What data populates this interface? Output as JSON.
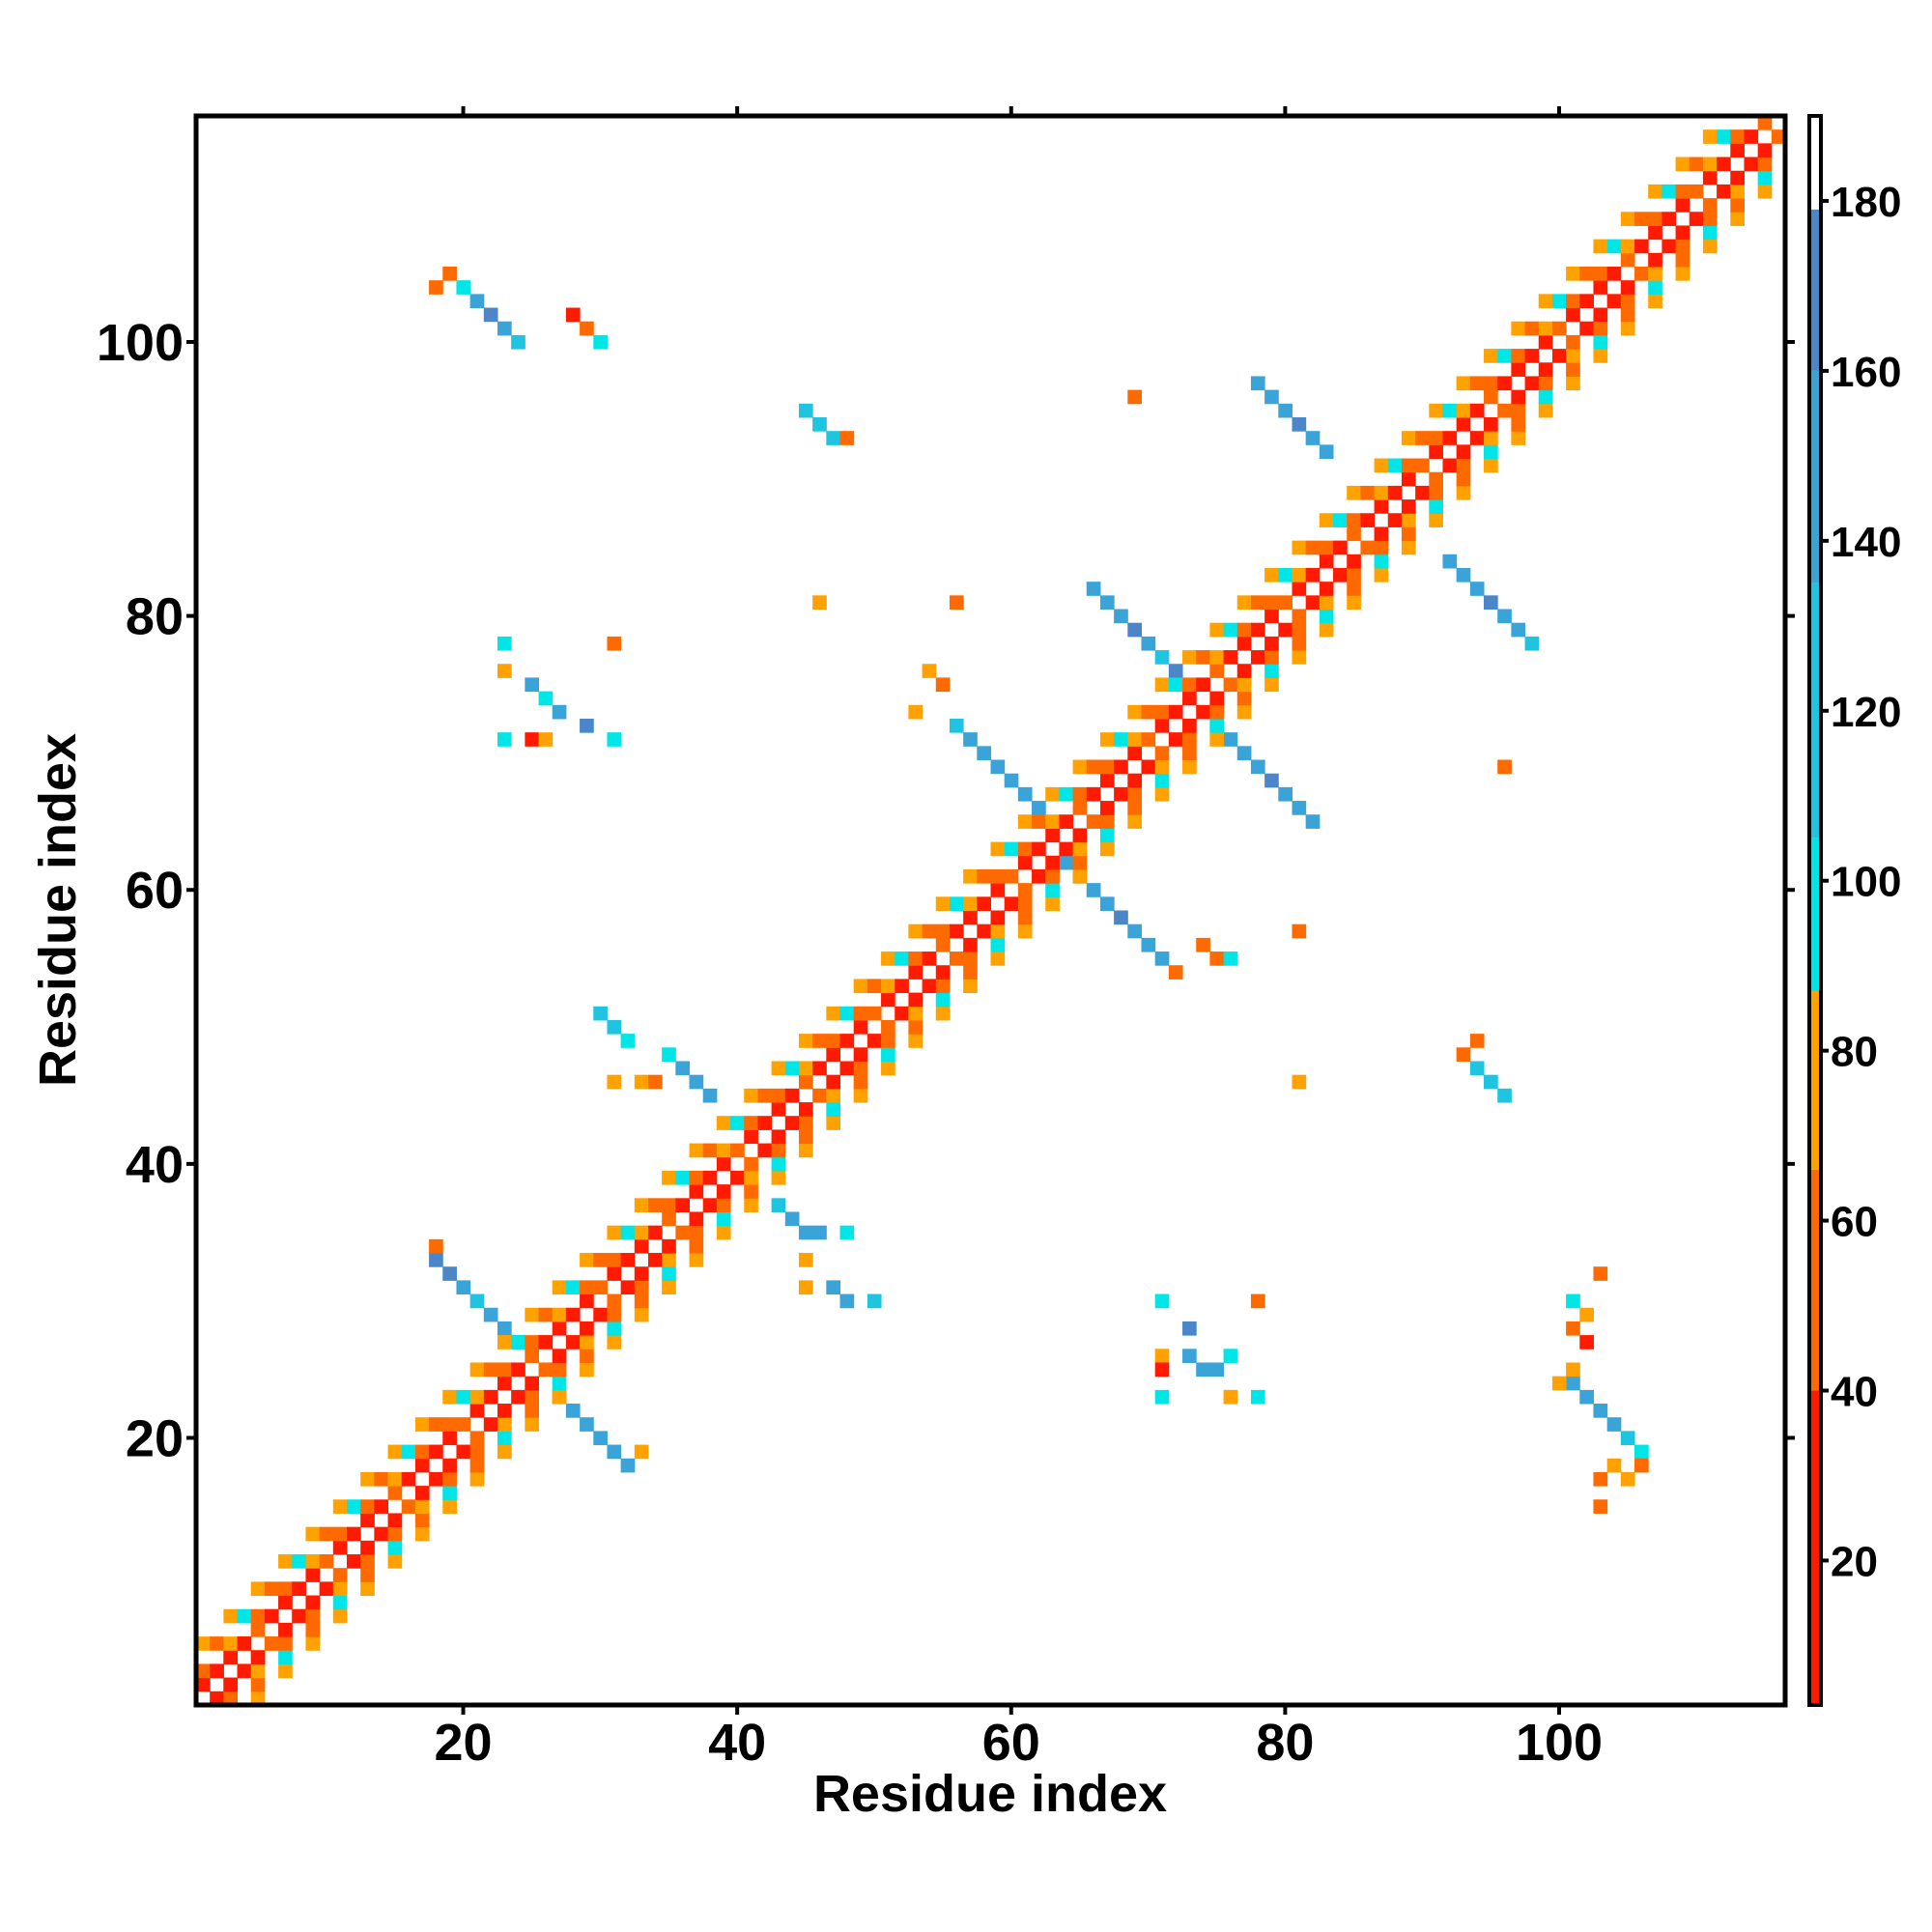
{
  "chart_data": {
    "type": "heatmap",
    "title": "",
    "xlabel": "Residue index",
    "ylabel": "Residue index",
    "xlim": [
      0.5,
      116.5
    ],
    "ylim": [
      0.5,
      116.5
    ],
    "xticks": [
      20,
      40,
      60,
      80,
      100
    ],
    "yticks": [
      20,
      40,
      60,
      80,
      100
    ],
    "grid": false,
    "colorbar": {
      "ticks": [
        20,
        40,
        60,
        80,
        100,
        120,
        140,
        160,
        180
      ],
      "range": [
        3,
        190
      ],
      "bands": [
        {
          "from": 3,
          "to": 40,
          "color": "#ff1a00"
        },
        {
          "from": 40,
          "to": 66,
          "color": "#ff6a00"
        },
        {
          "from": 66,
          "to": 87,
          "color": "#ffa200"
        },
        {
          "from": 87,
          "to": 105,
          "color": "#00e5e5"
        },
        {
          "from": 105,
          "to": 135,
          "color": "#1ec4e0"
        },
        {
          "from": 135,
          "to": 160,
          "color": "#3aa3d8"
        },
        {
          "from": 160,
          "to": 179,
          "color": "#4a86c8"
        },
        {
          "from": 179,
          "to": 190,
          "color": "#ffffff"
        }
      ]
    },
    "cells": [
      {
        "x": 2,
        "y": 3,
        "v": 30
      },
      {
        "x": 3,
        "y": 4,
        "v": 50
      },
      {
        "x": 4,
        "y": 5,
        "v": 60
      },
      {
        "x": 5,
        "y": 6,
        "v": 75
      },
      {
        "x": 6,
        "y": 7,
        "v": 95
      },
      {
        "x": 7,
        "y": 8,
        "v": 100
      },
      {
        "x": 8,
        "y": 9,
        "v": 110
      },
      {
        "x": 3,
        "y": 2,
        "v": 30
      },
      {
        "x": 4,
        "y": 3,
        "v": 50
      },
      {
        "x": 5,
        "y": 4,
        "v": 60
      },
      {
        "x": 6,
        "y": 5,
        "v": 75
      },
      {
        "x": 7,
        "y": 6,
        "v": 95
      },
      {
        "x": 8,
        "y": 7,
        "v": 100
      },
      {
        "x": 9,
        "y": 8,
        "v": 110
      },
      {
        "x": 20,
        "y": 104,
        "v": 100
      },
      {
        "x": 21,
        "y": 103,
        "v": 150
      },
      {
        "x": 22,
        "y": 102,
        "v": 160
      },
      {
        "x": 23,
        "y": 101,
        "v": 150
      },
      {
        "x": 24,
        "y": 100,
        "v": 130
      },
      {
        "x": 19,
        "y": 105,
        "v": 60
      },
      {
        "x": 18,
        "y": 104,
        "v": 50
      },
      {
        "x": 28,
        "y": 102,
        "v": 30
      },
      {
        "x": 29,
        "y": 101,
        "v": 60
      },
      {
        "x": 30,
        "y": 100,
        "v": 95
      },
      {
        "x": 45,
        "y": 95,
        "v": 120
      },
      {
        "x": 46,
        "y": 94,
        "v": 130
      },
      {
        "x": 47,
        "y": 93,
        "v": 130
      },
      {
        "x": 48,
        "y": 93,
        "v": 60
      },
      {
        "x": 78,
        "y": 97,
        "v": 140
      },
      {
        "x": 79,
        "y": 96,
        "v": 150
      },
      {
        "x": 80,
        "y": 95,
        "v": 150
      },
      {
        "x": 81,
        "y": 94,
        "v": 160
      },
      {
        "x": 82,
        "y": 93,
        "v": 150
      },
      {
        "x": 83,
        "y": 92,
        "v": 140
      },
      {
        "x": 69,
        "y": 96,
        "v": 55
      },
      {
        "x": 66,
        "y": 82,
        "v": 140
      },
      {
        "x": 67,
        "y": 81,
        "v": 150
      },
      {
        "x": 68,
        "y": 80,
        "v": 150
      },
      {
        "x": 69,
        "y": 79,
        "v": 160
      },
      {
        "x": 70,
        "y": 78,
        "v": 150
      },
      {
        "x": 71,
        "y": 77,
        "v": 130
      },
      {
        "x": 72,
        "y": 76,
        "v": 160
      },
      {
        "x": 92,
        "y": 84,
        "v": 140
      },
      {
        "x": 93,
        "y": 83,
        "v": 150
      },
      {
        "x": 94,
        "y": 82,
        "v": 150
      },
      {
        "x": 95,
        "y": 81,
        "v": 160
      },
      {
        "x": 96,
        "y": 80,
        "v": 150
      },
      {
        "x": 97,
        "y": 79,
        "v": 140
      },
      {
        "x": 98,
        "y": 78,
        "v": 130
      },
      {
        "x": 56,
        "y": 72,
        "v": 130
      },
      {
        "x": 57,
        "y": 71,
        "v": 140
      },
      {
        "x": 58,
        "y": 70,
        "v": 150
      },
      {
        "x": 59,
        "y": 69,
        "v": 150
      },
      {
        "x": 60,
        "y": 68,
        "v": 150
      },
      {
        "x": 61,
        "y": 67,
        "v": 150
      },
      {
        "x": 62,
        "y": 66,
        "v": 150
      },
      {
        "x": 75,
        "y": 72,
        "v": 140
      },
      {
        "x": 76,
        "y": 71,
        "v": 150
      },
      {
        "x": 77,
        "y": 70,
        "v": 150
      },
      {
        "x": 78,
        "y": 69,
        "v": 150
      },
      {
        "x": 79,
        "y": 68,
        "v": 160
      },
      {
        "x": 80,
        "y": 67,
        "v": 150
      },
      {
        "x": 81,
        "y": 66,
        "v": 150
      },
      {
        "x": 82,
        "y": 65,
        "v": 140
      },
      {
        "x": 64,
        "y": 62,
        "v": 140
      },
      {
        "x": 65,
        "y": 61,
        "v": 150
      },
      {
        "x": 66,
        "y": 60,
        "v": 150
      },
      {
        "x": 67,
        "y": 59,
        "v": 150
      },
      {
        "x": 68,
        "y": 58,
        "v": 160
      },
      {
        "x": 69,
        "y": 57,
        "v": 150
      },
      {
        "x": 70,
        "y": 56,
        "v": 150
      },
      {
        "x": 71,
        "y": 55,
        "v": 140
      },
      {
        "x": 72,
        "y": 54,
        "v": 60
      },
      {
        "x": 74,
        "y": 56,
        "v": 50
      },
      {
        "x": 75,
        "y": 55,
        "v": 60
      },
      {
        "x": 76,
        "y": 55,
        "v": 100
      },
      {
        "x": 81,
        "y": 57,
        "v": 50
      },
      {
        "x": 23,
        "y": 78,
        "v": 100
      },
      {
        "x": 23,
        "y": 76,
        "v": 70
      },
      {
        "x": 25,
        "y": 75,
        "v": 140
      },
      {
        "x": 26,
        "y": 74,
        "v": 100
      },
      {
        "x": 27,
        "y": 73,
        "v": 150
      },
      {
        "x": 29,
        "y": 72,
        "v": 160
      },
      {
        "x": 31,
        "y": 78,
        "v": 50
      },
      {
        "x": 23,
        "y": 71,
        "v": 100
      },
      {
        "x": 25,
        "y": 71,
        "v": 30
      },
      {
        "x": 26,
        "y": 71,
        "v": 70
      },
      {
        "x": 31,
        "y": 71,
        "v": 100
      },
      {
        "x": 56,
        "y": 81,
        "v": 55
      },
      {
        "x": 46,
        "y": 81,
        "v": 70
      },
      {
        "x": 54,
        "y": 76,
        "v": 70
      },
      {
        "x": 55,
        "y": 75,
        "v": 55
      },
      {
        "x": 53,
        "y": 73,
        "v": 70
      },
      {
        "x": 96,
        "y": 69,
        "v": 55
      },
      {
        "x": 30,
        "y": 51,
        "v": 130
      },
      {
        "x": 31,
        "y": 50,
        "v": 130
      },
      {
        "x": 32,
        "y": 49,
        "v": 100
      },
      {
        "x": 35,
        "y": 48,
        "v": 100
      },
      {
        "x": 36,
        "y": 47,
        "v": 140
      },
      {
        "x": 37,
        "y": 46,
        "v": 150
      },
      {
        "x": 38,
        "y": 45,
        "v": 150
      },
      {
        "x": 31,
        "y": 46,
        "v": 70
      },
      {
        "x": 33,
        "y": 46,
        "v": 70
      },
      {
        "x": 34,
        "y": 46,
        "v": 55
      },
      {
        "x": 94,
        "y": 47,
        "v": 130
      },
      {
        "x": 95,
        "y": 46,
        "v": 130
      },
      {
        "x": 96,
        "y": 45,
        "v": 120
      },
      {
        "x": 94,
        "y": 49,
        "v": 60
      },
      {
        "x": 93,
        "y": 48,
        "v": 50
      },
      {
        "x": 81,
        "y": 46,
        "v": 70
      },
      {
        "x": 43,
        "y": 37,
        "v": 130
      },
      {
        "x": 44,
        "y": 36,
        "v": 140
      },
      {
        "x": 45,
        "y": 35,
        "v": 150
      },
      {
        "x": 46,
        "y": 35,
        "v": 140
      },
      {
        "x": 48,
        "y": 35,
        "v": 100
      },
      {
        "x": 45,
        "y": 33,
        "v": 70
      },
      {
        "x": 47,
        "y": 31,
        "v": 140
      },
      {
        "x": 48,
        "y": 30,
        "v": 150
      },
      {
        "x": 50,
        "y": 30,
        "v": 130
      },
      {
        "x": 45,
        "y": 31,
        "v": 70
      },
      {
        "x": 18,
        "y": 33,
        "v": 160
      },
      {
        "x": 19,
        "y": 32,
        "v": 160
      },
      {
        "x": 20,
        "y": 31,
        "v": 150
      },
      {
        "x": 21,
        "y": 30,
        "v": 130
      },
      {
        "x": 22,
        "y": 29,
        "v": 140
      },
      {
        "x": 23,
        "y": 28,
        "v": 150
      },
      {
        "x": 24,
        "y": 27,
        "v": 160
      },
      {
        "x": 18,
        "y": 34,
        "v": 60
      },
      {
        "x": 27,
        "y": 23,
        "v": 160
      },
      {
        "x": 28,
        "y": 22,
        "v": 150
      },
      {
        "x": 29,
        "y": 21,
        "v": 150
      },
      {
        "x": 30,
        "y": 20,
        "v": 140
      },
      {
        "x": 31,
        "y": 19,
        "v": 150
      },
      {
        "x": 32,
        "y": 18,
        "v": 150
      },
      {
        "x": 33,
        "y": 19,
        "v": 75
      },
      {
        "x": 71,
        "y": 30,
        "v": 100
      },
      {
        "x": 78,
        "y": 30,
        "v": 50
      },
      {
        "x": 73,
        "y": 28,
        "v": 160
      },
      {
        "x": 71,
        "y": 26,
        "v": 70
      },
      {
        "x": 71,
        "y": 25,
        "v": 30
      },
      {
        "x": 73,
        "y": 26,
        "v": 140
      },
      {
        "x": 74,
        "y": 25,
        "v": 150
      },
      {
        "x": 75,
        "y": 25,
        "v": 150
      },
      {
        "x": 76,
        "y": 26,
        "v": 100
      },
      {
        "x": 71,
        "y": 23,
        "v": 100
      },
      {
        "x": 76,
        "y": 23,
        "v": 70
      },
      {
        "x": 78,
        "y": 23,
        "v": 100
      },
      {
        "x": 101,
        "y": 24,
        "v": 140
      },
      {
        "x": 102,
        "y": 23,
        "v": 150
      },
      {
        "x": 103,
        "y": 22,
        "v": 150
      },
      {
        "x": 104,
        "y": 21,
        "v": 140
      },
      {
        "x": 105,
        "y": 20,
        "v": 130
      },
      {
        "x": 106,
        "y": 19,
        "v": 100
      },
      {
        "x": 104,
        "y": 18,
        "v": 70
      },
      {
        "x": 106,
        "y": 18,
        "v": 55
      },
      {
        "x": 103,
        "y": 17,
        "v": 60
      },
      {
        "x": 105,
        "y": 17,
        "v": 70
      },
      {
        "x": 103,
        "y": 15,
        "v": 50
      },
      {
        "x": 101,
        "y": 25,
        "v": 75
      },
      {
        "x": 100,
        "y": 24,
        "v": 70
      },
      {
        "x": 101,
        "y": 30,
        "v": 100
      },
      {
        "x": 102,
        "y": 29,
        "v": 70
      },
      {
        "x": 101,
        "y": 28,
        "v": 50
      },
      {
        "x": 102,
        "y": 27,
        "v": 30
      },
      {
        "x": 103,
        "y": 32,
        "v": 60
      }
    ]
  }
}
